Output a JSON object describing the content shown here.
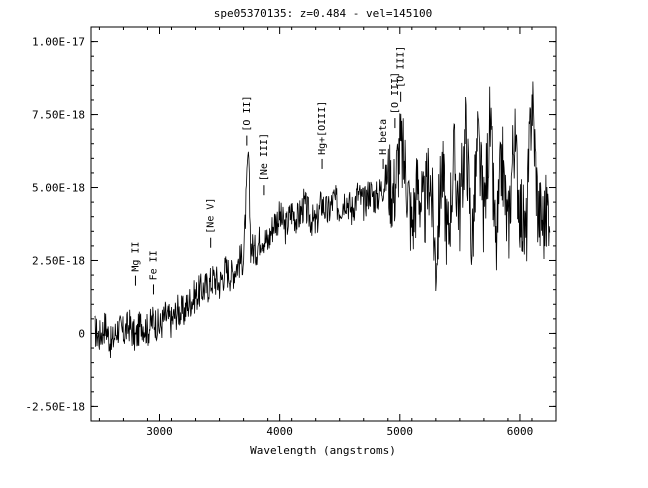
{
  "chart_data": {
    "type": "line",
    "title": "spe05370135: z=0.484 - vel=145100",
    "xlabel": "Wavelength (angstroms)",
    "ylabel": "",
    "xlim": [
      2430,
      6300
    ],
    "ylim": [
      -3e-18,
      1.05e-17
    ],
    "x_ticks": [
      3000,
      4000,
      5000,
      6000
    ],
    "x_tick_labels": [
      "3000",
      "4000",
      "5000",
      "6000"
    ],
    "y_ticks": [
      -2.5e-18,
      0,
      2.5e-18,
      5e-18,
      7.5e-18,
      1e-17
    ],
    "y_tick_labels": [
      "-2.50E-18",
      "0",
      "2.50E-18",
      "5.00E-18",
      "7.50E-18",
      "1.00E-17"
    ],
    "grid": false,
    "series": [
      {
        "color": "#000000",
        "x": [
          2460,
          2500,
          2550,
          2600,
          2650,
          2700,
          2750,
          2800,
          2850,
          2900,
          2950,
          3000,
          3050,
          3100,
          3150,
          3200,
          3250,
          3300,
          3350,
          3400,
          3450,
          3500,
          3550,
          3600,
          3650,
          3700,
          3740,
          3760,
          3800,
          3850,
          3900,
          3950,
          4000,
          4050,
          4100,
          4150,
          4200,
          4250,
          4300,
          4350,
          4400,
          4450,
          4500,
          4550,
          4600,
          4650,
          4700,
          4750,
          4800,
          4850,
          4900,
          4950,
          5000,
          5050,
          5100,
          5150,
          5200,
          5250,
          5300,
          5350,
          5400,
          5450,
          5500,
          5550,
          5600,
          5650,
          5700,
          5750,
          5800,
          5850,
          5900,
          5950,
          6000,
          6050,
          6100,
          6150,
          6200,
          6250
        ],
        "y": [
          1e-19,
          -1e-19,
          3e-19,
          -4e-19,
          2e-19,
          0.0,
          3e-19,
          -2e-19,
          4e-19,
          1e-19,
          5e-19,
          2e-19,
          6e-19,
          4e-19,
          8e-19,
          7e-19,
          1.1e-18,
          1.3e-18,
          1.5e-18,
          1.6e-18,
          1.9e-18,
          1.7e-18,
          2.2e-18,
          2e-18,
          2.4e-18,
          2.6e-18,
          6.2e-18,
          3e-18,
          2.8e-18,
          3.4e-18,
          3.1e-18,
          3.8e-18,
          4e-18,
          3.6e-18,
          4.2e-18,
          3.9e-18,
          4.4e-18,
          4e-18,
          3.7e-18,
          4.5e-18,
          4.1e-18,
          4.6e-18,
          4.3e-18,
          4.7e-18,
          4.2e-18,
          4.8e-18,
          4.4e-18,
          4.9e-18,
          4.6e-18,
          5e-18,
          5.4e-18,
          4.8e-18,
          6.4e-18,
          5.6e-18,
          3.6e-18,
          5.2e-18,
          4e-18,
          5.6e-18,
          2.4e-18,
          5.8e-18,
          3.2e-18,
          6e-18,
          4.2e-18,
          7e-18,
          3e-18,
          6.6e-18,
          4e-18,
          7.2e-18,
          2.8e-18,
          6e-18,
          3.4e-18,
          6.8e-18,
          4.4e-18,
          3.2e-18,
          8.3e-18,
          4.2e-18,
          3.8e-18,
          4.6e-18
        ]
      }
    ],
    "annotations": [
      {
        "label": "Mg II",
        "x": 2800,
        "y": 1.5e-18
      },
      {
        "label": "Fe II",
        "x": 2950,
        "y": 1.2e-18
      },
      {
        "label": "[Ne V]",
        "x": 3426,
        "y": 2.8e-18
      },
      {
        "label": "[O II]",
        "x": 3727,
        "y": 6.3e-18
      },
      {
        "label": "[Ne III]",
        "x": 3869,
        "y": 4.6e-18
      },
      {
        "label": "Hg+[OIII]",
        "x": 4353,
        "y": 5.5e-18
      },
      {
        "label": "H beta",
        "x": 4861,
        "y": 5.5e-18
      },
      {
        "label": "[O III]",
        "x": 4959,
        "y": 6.9e-18
      },
      {
        "label": "[O III]",
        "x": 5007,
        "y": 7.8e-18
      }
    ]
  }
}
